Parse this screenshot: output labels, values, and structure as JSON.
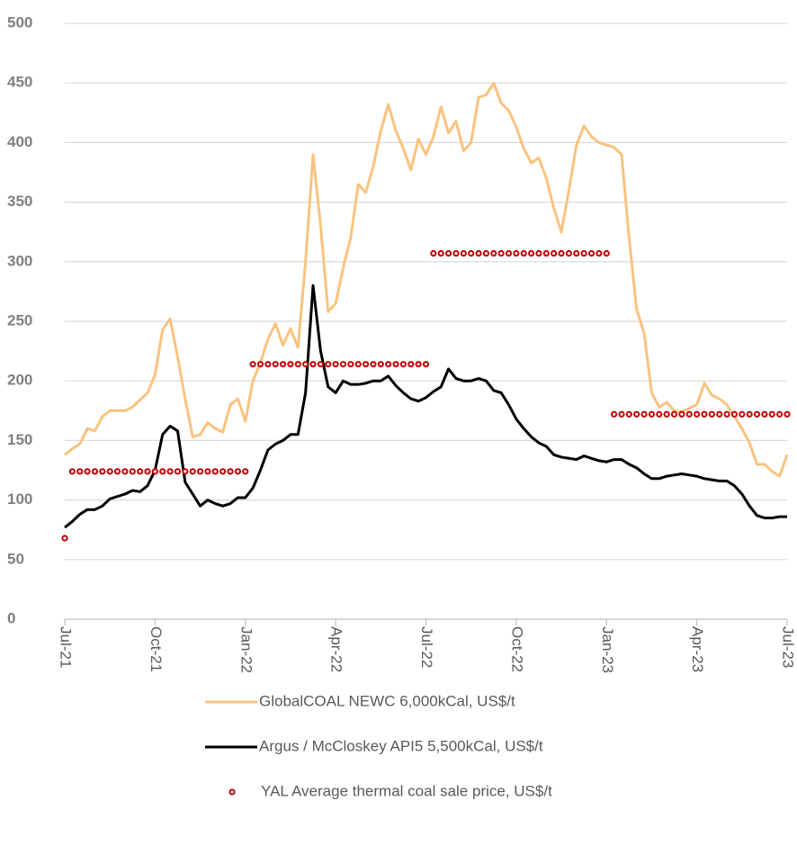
{
  "chart_data": {
    "type": "line",
    "categories": [
      "Jul-21",
      null,
      null,
      null,
      null,
      null,
      null,
      null,
      null,
      null,
      null,
      null,
      "Oct-21",
      null,
      null,
      null,
      null,
      null,
      null,
      null,
      null,
      null,
      null,
      null,
      "Jan-22",
      null,
      null,
      null,
      null,
      null,
      null,
      null,
      null,
      null,
      null,
      null,
      "Apr-22",
      null,
      null,
      null,
      null,
      null,
      null,
      null,
      null,
      null,
      null,
      null,
      "Jul-22",
      null,
      null,
      null,
      null,
      null,
      null,
      null,
      null,
      null,
      null,
      null,
      "Oct-22",
      null,
      null,
      null,
      null,
      null,
      null,
      null,
      null,
      null,
      null,
      null,
      "Jan-23",
      null,
      null,
      null,
      null,
      null,
      null,
      null,
      null,
      null,
      null,
      null,
      "Apr-23",
      null,
      null,
      null,
      null,
      null,
      null,
      null,
      null,
      null,
      null,
      null,
      "Jul-23"
    ],
    "series": [
      {
        "name": "GlobalCOAL NEWC 6,000kCal, US$/t",
        "color": "#f9c37f",
        "mode": "line",
        "values": [
          138,
          143,
          147,
          160,
          158,
          170,
          175,
          175,
          175,
          178,
          184,
          190,
          205,
          243,
          252,
          220,
          185,
          153,
          155,
          165,
          160,
          157,
          180,
          185,
          166,
          200,
          215,
          235,
          248,
          230,
          244,
          228,
          300,
          390,
          330,
          258,
          265,
          295,
          320,
          365,
          358,
          380,
          410,
          432,
          410,
          395,
          377,
          403,
          390,
          405,
          430,
          408,
          418,
          393,
          400,
          438,
          440,
          450,
          433,
          427,
          413,
          395,
          383,
          387,
          370,
          345,
          325,
          360,
          398,
          414,
          405,
          400,
          398,
          396,
          390,
          320,
          260,
          240,
          190,
          178,
          182,
          175,
          174,
          177,
          180,
          198,
          188,
          185,
          180,
          170,
          160,
          148,
          130,
          130,
          124,
          120,
          138
        ]
      },
      {
        "name": "Argus / McCloskey API5 5,500kCal, US$/t",
        "color": "#000000",
        "mode": "line",
        "values": [
          77,
          82,
          88,
          92,
          92,
          95,
          101,
          103,
          105,
          108,
          107,
          112,
          125,
          155,
          162,
          158,
          115,
          105,
          95,
          100,
          97,
          95,
          97,
          102,
          102,
          110,
          125,
          142,
          147,
          150,
          155,
          155,
          190,
          280,
          225,
          195,
          190,
          200,
          197,
          197,
          198,
          200,
          200,
          204,
          196,
          190,
          185,
          183,
          186,
          191,
          195,
          210,
          202,
          200,
          200,
          202,
          200,
          192,
          190,
          180,
          168,
          160,
          153,
          148,
          145,
          138,
          136,
          135,
          134,
          137,
          135,
          133,
          132,
          134,
          134,
          130,
          127,
          122,
          118,
          118,
          120,
          121,
          122,
          121,
          120,
          118,
          117,
          116,
          116,
          112,
          105,
          95,
          87,
          85,
          85,
          86,
          86
        ]
      },
      {
        "name": "YAL Average thermal coal sale price, US$/t",
        "color": "#c00000",
        "mode": "markers",
        "values": [
          68,
          124,
          124,
          124,
          124,
          124,
          124,
          124,
          124,
          124,
          124,
          124,
          124,
          124,
          124,
          124,
          124,
          124,
          124,
          124,
          124,
          124,
          124,
          124,
          124,
          214,
          214,
          214,
          214,
          214,
          214,
          214,
          214,
          214,
          214,
          214,
          214,
          214,
          214,
          214,
          214,
          214,
          214,
          214,
          214,
          214,
          214,
          214,
          214,
          307,
          307,
          307,
          307,
          307,
          307,
          307,
          307,
          307,
          307,
          307,
          307,
          307,
          307,
          307,
          307,
          307,
          307,
          307,
          307,
          307,
          307,
          307,
          307,
          172,
          172,
          172,
          172,
          172,
          172,
          172,
          172,
          172,
          172,
          172,
          172,
          172,
          172,
          172,
          172,
          172,
          172,
          172,
          172,
          172,
          172,
          172,
          172
        ]
      }
    ],
    "ylim": [
      0,
      500
    ],
    "yticks": [
      0,
      50,
      100,
      150,
      200,
      250,
      300,
      350,
      400,
      450,
      500
    ],
    "grid": true
  }
}
